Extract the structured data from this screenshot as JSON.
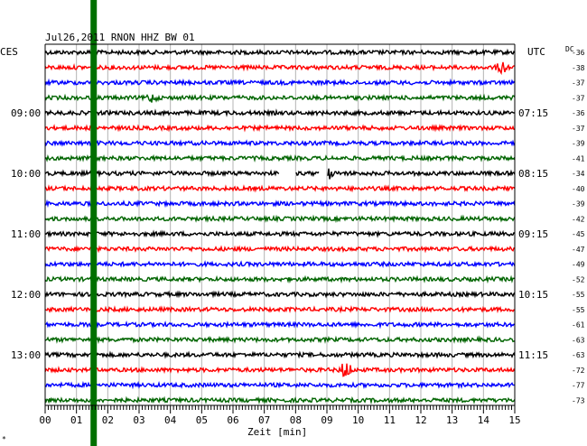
{
  "chart_data": {
    "type": "line",
    "title": "Jul26,2011   RNON HHZ BW 01",
    "left_axis_label": "CES",
    "right_axis_label": "UTC",
    "right_column_header": "DC",
    "xlabel": "Zeit [min]",
    "x_ticks": [
      "00",
      "01",
      "02",
      "03",
      "04",
      "05",
      "06",
      "07",
      "08",
      "09",
      "10",
      "11",
      "12",
      "13",
      "14",
      "15"
    ],
    "xlim": [
      0,
      15
    ],
    "grid": true,
    "trace_colors": [
      "#000000",
      "#ff0000",
      "#0000ff",
      "#006400"
    ],
    "marker_color": "#007000",
    "marker_minute": 1.55,
    "traces": [
      {
        "left_time": "",
        "right_time": "",
        "dc": "-36"
      },
      {
        "left_time": "",
        "right_time": "",
        "dc": "-38"
      },
      {
        "left_time": "",
        "right_time": "",
        "dc": "-37"
      },
      {
        "left_time": "",
        "right_time": "",
        "dc": "-37"
      },
      {
        "left_time": "09:00",
        "right_time": "07:15",
        "dc": "-36"
      },
      {
        "left_time": "",
        "right_time": "",
        "dc": "-37"
      },
      {
        "left_time": "",
        "right_time": "",
        "dc": "-39"
      },
      {
        "left_time": "",
        "right_time": "",
        "dc": "-41"
      },
      {
        "left_time": "10:00",
        "right_time": "08:15",
        "dc": "-34"
      },
      {
        "left_time": "",
        "right_time": "",
        "dc": "-40"
      },
      {
        "left_time": "",
        "right_time": "",
        "dc": "-39"
      },
      {
        "left_time": "",
        "right_time": "",
        "dc": "-42"
      },
      {
        "left_time": "11:00",
        "right_time": "09:15",
        "dc": "-45"
      },
      {
        "left_time": "",
        "right_time": "",
        "dc": "-47"
      },
      {
        "left_time": "",
        "right_time": "",
        "dc": "-49"
      },
      {
        "left_time": "",
        "right_time": "",
        "dc": "-52"
      },
      {
        "left_time": "12:00",
        "right_time": "10:15",
        "dc": "-55"
      },
      {
        "left_time": "",
        "right_time": "",
        "dc": "-55"
      },
      {
        "left_time": "",
        "right_time": "",
        "dc": "-61"
      },
      {
        "left_time": "",
        "right_time": "",
        "dc": "-63"
      },
      {
        "left_time": "13:00",
        "right_time": "11:15",
        "dc": "-63"
      },
      {
        "left_time": "",
        "right_time": "",
        "dc": "-72"
      },
      {
        "left_time": "",
        "right_time": "",
        "dc": "-77"
      },
      {
        "left_time": "",
        "right_time": "",
        "dc": "-73"
      }
    ],
    "events": [
      {
        "trace": 1,
        "minute": 14.6,
        "amplitude": 6
      },
      {
        "trace": 3,
        "minute": 3.4,
        "amplitude": 4
      },
      {
        "trace": 8,
        "minute": 9.0,
        "amplitude": 8
      },
      {
        "trace": 21,
        "minute": 9.6,
        "amplitude": 9
      }
    ],
    "gaps": [
      {
        "trace": 8,
        "start_minute": 7.5,
        "end_minute": 8.0
      },
      {
        "trace": 8,
        "start_minute": 8.75,
        "end_minute": 9.0
      }
    ]
  },
  "corner_mark": "*"
}
